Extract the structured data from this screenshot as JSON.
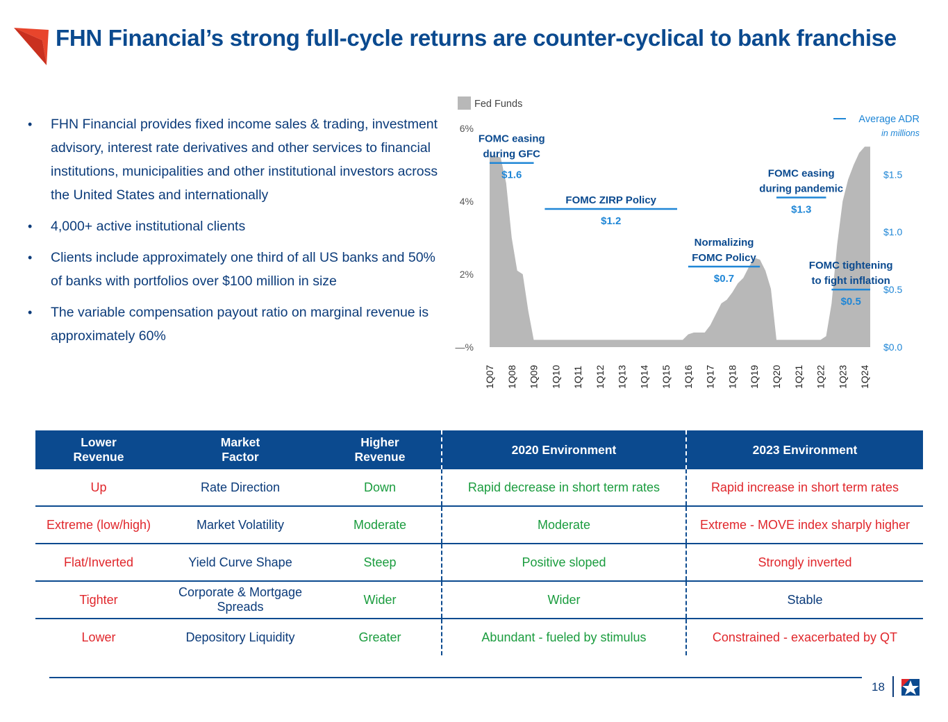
{
  "title": "FHN Financial’s strong full-cycle returns are counter-cyclical to bank franchise",
  "bullets": [
    "FHN Financial provides fixed income sales & trading, investment advisory, interest rate derivatives and other services to financial institutions, municipalities and other institutional investors across the United States and internationally",
    "4,000+ active institutional clients",
    "Clients include approximately one third of all US banks and 50% of banks with portfolios over $100 million in size",
    "The variable compensation payout ratio on marginal revenue is approximately 60%"
  ],
  "colors": {
    "navy": "#0b4a8f",
    "accent_blue": "#1f86d6",
    "gray_area": "#b8b8b8",
    "red": "#e0262b",
    "green": "#1a9c3e"
  },
  "chart_data": {
    "type": "area",
    "series": [
      {
        "name": "Fed Funds",
        "axis": "left",
        "x": [
          2007.0,
          2007.25,
          2007.5,
          2007.75,
          2008.0,
          2008.25,
          2008.5,
          2008.75,
          2009.0,
          2010.0,
          2011.0,
          2012.0,
          2013.0,
          2014.0,
          2015.0,
          2015.75,
          2016.0,
          2016.25,
          2016.5,
          2016.75,
          2017.0,
          2017.25,
          2017.5,
          2017.75,
          2018.0,
          2018.25,
          2018.5,
          2018.75,
          2019.0,
          2019.25,
          2019.5,
          2019.75,
          2020.0,
          2020.25,
          2021.0,
          2022.0,
          2022.25,
          2022.5,
          2022.75,
          2023.0,
          2023.25,
          2023.5,
          2023.75,
          2024.0,
          2024.25
        ],
        "values": [
          5.25,
          5.25,
          5.2,
          4.5,
          3.0,
          2.1,
          2.0,
          1.0,
          0.2,
          0.2,
          0.2,
          0.2,
          0.2,
          0.2,
          0.2,
          0.2,
          0.35,
          0.4,
          0.4,
          0.4,
          0.6,
          0.9,
          1.2,
          1.3,
          1.5,
          1.75,
          1.9,
          2.2,
          2.45,
          2.4,
          2.1,
          1.6,
          0.2,
          0.2,
          0.2,
          0.2,
          0.3,
          1.2,
          2.8,
          4.0,
          4.6,
          5.0,
          5.33,
          5.5,
          5.5
        ]
      },
      {
        "name": "Average ADR",
        "axis": "right",
        "unit": "in millions",
        "periods": [
          {
            "label": "FOMC easing\nduring GFC",
            "start": 2007.0,
            "end": 2009.0,
            "value": 1.6,
            "value_label": "$1.6"
          },
          {
            "label": "FOMC ZIRP Policy",
            "start": 2009.5,
            "end": 2015.5,
            "value": 1.2,
            "value_label": "$1.2"
          },
          {
            "label": "Normalizing\nFOMC Policy",
            "start": 2016.0,
            "end": 2019.25,
            "value": 0.7,
            "value_label": "$0.7"
          },
          {
            "label": "FOMC easing\nduring pandemic",
            "start": 2020.0,
            "end": 2022.25,
            "value": 1.3,
            "value_label": "$1.3"
          },
          {
            "label": "FOMC tightening\nto fight inflation",
            "start": 2022.5,
            "end": 2024.25,
            "value": 0.5,
            "value_label": "$0.5"
          }
        ]
      }
    ],
    "x_ticks": [
      "1Q07",
      "1Q08",
      "1Q09",
      "1Q10",
      "1Q11",
      "1Q12",
      "1Q13",
      "1Q14",
      "1Q15",
      "1Q16",
      "1Q17",
      "1Q18",
      "1Q19",
      "1Q20",
      "1Q21",
      "1Q22",
      "1Q23",
      "1Q24"
    ],
    "xlim": [
      2007.0,
      2024.25
    ],
    "ylim_left": [
      0,
      6
    ],
    "ylim_right": [
      0,
      1.9
    ],
    "left_ticks": [
      "—%",
      "2%",
      "4%",
      "6%"
    ],
    "right_ticks": [
      "$0.0",
      "$0.5",
      "$1.0",
      "$1.5"
    ],
    "legend": {
      "area_label": "Fed Funds",
      "line_label": "Average ADR",
      "line_note": "in millions"
    },
    "grid": false
  },
  "table": {
    "headers": [
      "Lower\nRevenue",
      "Market\nFactor",
      "Higher\nRevenue",
      "2020 Environment",
      "2023 Environment"
    ],
    "rows": [
      [
        "Up",
        "Rate Direction",
        "Down",
        "Rapid decrease in short term rates",
        "Rapid increase in short term rates"
      ],
      [
        "Extreme (low/high)",
        "Market Volatility",
        "Moderate",
        "Moderate",
        "Extreme - MOVE index sharply higher"
      ],
      [
        "Flat/Inverted",
        "Yield Curve Shape",
        "Steep",
        "Positive sloped",
        "Strongly inverted"
      ],
      [
        "Tighter",
        "Corporate & Mortgage Spreads",
        "Wider",
        "Wider",
        "Stable"
      ],
      [
        "Lower",
        "Depository Liquidity",
        "Greater",
        "Abundant - fueled by stimulus",
        "Constrained - exacerbated by QT"
      ]
    ]
  },
  "footer": {
    "page_number": "18"
  }
}
